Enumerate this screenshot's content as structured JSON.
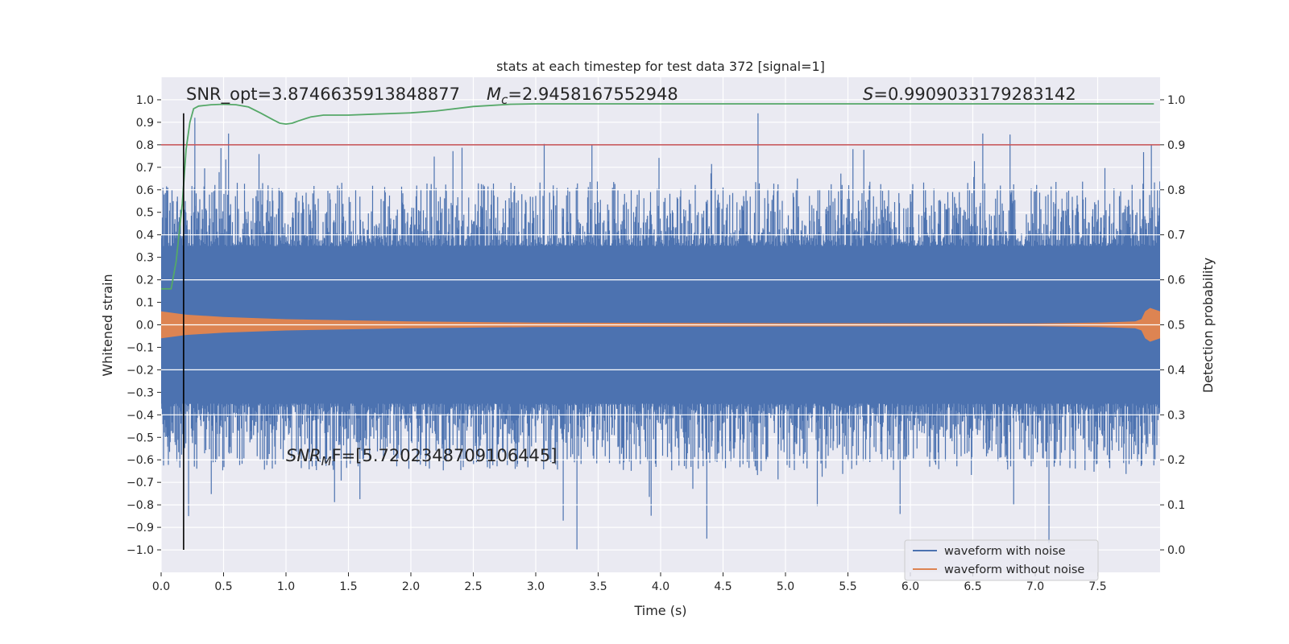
{
  "chart_data": {
    "type": "line",
    "title": "stats at each timestep for test data 372 [signal=1]",
    "xlabel": "Time (s)",
    "ylabel": "Whitened strain",
    "y2label": "Detection probability",
    "xlim": [
      0,
      8.0
    ],
    "ylim": [
      -1.1,
      1.1
    ],
    "y2lim": [
      -0.05,
      1.05
    ],
    "x_ticks": [
      0.0,
      0.5,
      1.0,
      1.5,
      2.0,
      2.5,
      3.0,
      3.5,
      4.0,
      4.5,
      5.0,
      5.5,
      6.0,
      6.5,
      7.0,
      7.5
    ],
    "x_tick_labels": [
      "0.0",
      "0.5",
      "1.0",
      "1.5",
      "2.0",
      "2.5",
      "3.0",
      "3.5",
      "4.0",
      "4.5",
      "5.0",
      "5.5",
      "6.0",
      "6.5",
      "7.0",
      "7.5"
    ],
    "y_ticks": [
      1.0,
      0.9,
      0.8,
      0.7,
      0.6,
      0.5,
      0.4,
      0.3,
      0.2,
      0.1,
      0.0,
      -0.1,
      -0.2,
      -0.3,
      -0.4,
      -0.5,
      -0.6,
      -0.7,
      -0.8,
      -0.9,
      -1.0
    ],
    "y_tick_labels": [
      "1.0",
      "0.9",
      "0.8",
      "0.7",
      "0.6",
      "0.5",
      "0.4",
      "0.3",
      "0.2",
      "0.1",
      "0.0",
      "−0.1",
      "−0.2",
      "−0.3",
      "−0.4",
      "−0.5",
      "−0.6",
      "−0.7",
      "−0.8",
      "−0.9",
      "−1.0"
    ],
    "y2_ticks": [
      1.0,
      0.9,
      0.8,
      0.7,
      0.6,
      0.5,
      0.4,
      0.3,
      0.2,
      0.1,
      0.0
    ],
    "y2_tick_labels": [
      "1.0",
      "0.9",
      "0.8",
      "0.7",
      "0.6",
      "0.5",
      "0.4",
      "0.3",
      "0.2",
      "0.1",
      "0.0"
    ],
    "grid": true,
    "legend_position": "lower-right",
    "series": [
      {
        "name": "waveform with noise",
        "axis": "left",
        "color": "#4c72b0",
        "core_amplitude": 0.35,
        "typical_peak": 0.6,
        "max": 0.94,
        "min": -1.0,
        "spikes": [
          [
            0.27,
            0.92
          ],
          [
            0.54,
            0.85
          ],
          [
            3.33,
            -1.0
          ],
          [
            4.37,
            -0.95
          ],
          [
            4.78,
            0.94
          ],
          [
            7.11,
            -0.97
          ],
          [
            7.93,
            0.8
          ],
          [
            0.22,
            -0.85
          ],
          [
            3.22,
            -0.87
          ],
          [
            6.58,
            0.85
          ]
        ]
      },
      {
        "name": "waveform without noise",
        "axis": "left",
        "color": "#dd8452",
        "envelope": [
          [
            0.0,
            0.06
          ],
          [
            0.2,
            0.045
          ],
          [
            0.5,
            0.035
          ],
          [
            1.0,
            0.025
          ],
          [
            2.0,
            0.015
          ],
          [
            3.0,
            0.01
          ],
          [
            5.0,
            0.007
          ],
          [
            7.0,
            0.006
          ],
          [
            7.5,
            0.01
          ],
          [
            7.8,
            0.015
          ],
          [
            7.85,
            0.025
          ],
          [
            7.88,
            0.06
          ],
          [
            7.92,
            0.075
          ],
          [
            8.0,
            0.06
          ]
        ]
      },
      {
        "name": "detection probability",
        "axis": "right",
        "color": "#55a868",
        "x": [
          0.0,
          0.05,
          0.08,
          0.12,
          0.17,
          0.2,
          0.23,
          0.26,
          0.3,
          0.4,
          0.5,
          0.6,
          0.7,
          0.8,
          0.9,
          0.95,
          1.0,
          1.05,
          1.1,
          1.2,
          1.3,
          1.5,
          1.7,
          2.0,
          2.2,
          2.5,
          2.8,
          3.0,
          3.5,
          4.0,
          5.0,
          6.0,
          7.0,
          7.95
        ],
        "y": [
          0.58,
          0.58,
          0.58,
          0.64,
          0.77,
          0.89,
          0.95,
          0.98,
          0.986,
          0.989,
          0.99,
          0.989,
          0.984,
          0.97,
          0.955,
          0.948,
          0.946,
          0.948,
          0.953,
          0.962,
          0.966,
          0.966,
          0.968,
          0.971,
          0.975,
          0.985,
          0.99,
          0.991,
          0.991,
          0.991,
          0.991,
          0.991,
          0.991,
          0.991
        ]
      }
    ],
    "threshold": {
      "axis": "right",
      "value": 0.9,
      "color": "#c44e52"
    },
    "marker": {
      "x": 0.18,
      "color": "#000000",
      "ymin": -1.0,
      "ymax": 0.94
    },
    "annotations": {
      "snr_opt": "SNR_opt=3.8746635913848877",
      "mc_symbol": "M",
      "mc_sub": "c",
      "mc_value": "=2.9458167552948",
      "s_symbol": "S",
      "s_value": "=0.9909033179283142",
      "snrmf_symbol": "SNR",
      "snrmf_sub": "M",
      "snrmf_value": "F=[5.720234870910644​5]"
    }
  }
}
